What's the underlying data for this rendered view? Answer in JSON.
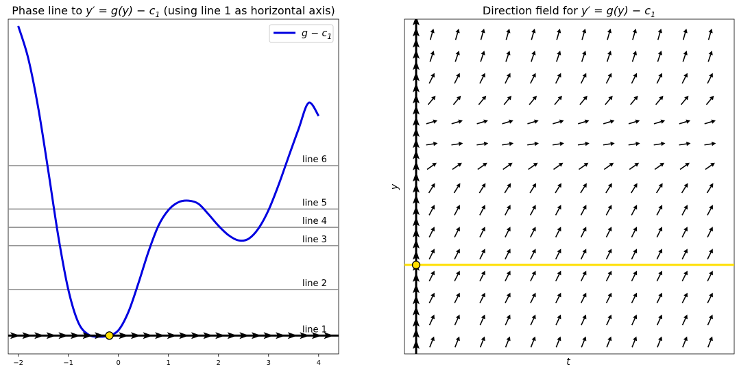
{
  "chart_data": [
    {
      "type": "line",
      "title_prefix": "Phase line to ",
      "title_math_1": "y′ = g(y) − c",
      "title_sub": "1",
      "title_suffix": " (using line 1 as horizontal axis)",
      "xlim": [
        -2.2,
        4.4
      ],
      "ylim": [
        -0.35,
        6.05
      ],
      "x_ticks": [
        -2,
        -1,
        0,
        1,
        2,
        3,
        4
      ],
      "x_tick_labels": [
        "−2",
        "−1",
        "0",
        "1",
        "2",
        "3",
        "4"
      ],
      "series": [
        {
          "name": "g − c1",
          "legend_main": "g − c",
          "legend_sub": "1",
          "color": "#0000e0",
          "x": [
            -2.0,
            -1.8,
            -1.6,
            -1.4,
            -1.2,
            -1.0,
            -0.8,
            -0.6,
            -0.4,
            -0.2,
            0.0,
            0.2,
            0.4,
            0.6,
            0.8,
            1.0,
            1.2,
            1.4,
            1.6,
            1.8,
            2.0,
            2.2,
            2.4,
            2.6,
            2.8,
            3.0,
            3.2,
            3.4,
            3.6,
            3.8,
            4.0
          ],
          "y": [
            5.92,
            5.3,
            4.35,
            3.15,
            1.9,
            0.88,
            0.25,
            0.02,
            -0.02,
            0.0,
            0.1,
            0.45,
            1.0,
            1.6,
            2.1,
            2.4,
            2.55,
            2.58,
            2.52,
            2.32,
            2.1,
            1.92,
            1.82,
            1.85,
            2.05,
            2.4,
            2.88,
            3.42,
            3.95,
            4.45,
            4.2
          ]
        }
      ],
      "hlines": [
        {
          "label": "line 1",
          "y": 0.0
        },
        {
          "label": "line 2",
          "y": 0.88
        },
        {
          "label": "line 3",
          "y": 1.72
        },
        {
          "label": "line 4",
          "y": 2.07
        },
        {
          "label": "line 5",
          "y": 2.42
        },
        {
          "label": "line 6",
          "y": 3.25
        }
      ],
      "equilibrium": {
        "x": -0.18,
        "y": 0.0,
        "color": "#ffdf00"
      },
      "flow_arrow_direction": "right",
      "legend_position": "top-right"
    },
    {
      "type": "quiver",
      "title_prefix": "Direction field for ",
      "title_math_1": "y′ = g(y) − c",
      "title_sub": "1",
      "xlabel": "t",
      "ylabel": "y",
      "equilibrium_y_row": 10.5,
      "equilibrium_color": "#ffdf00",
      "columns": 12,
      "rows": [
        {
          "row": 0,
          "slope": 3.5
        },
        {
          "row": 1,
          "slope": 3.0
        },
        {
          "row": 2,
          "slope": 2.0
        },
        {
          "row": 3,
          "slope": 1.2
        },
        {
          "row": 4,
          "slope": 0.3
        },
        {
          "row": 5,
          "slope": 0.15
        },
        {
          "row": 6,
          "slope": 0.7
        },
        {
          "row": 7,
          "slope": 1.6
        },
        {
          "row": 8,
          "slope": 1.9
        },
        {
          "row": 9,
          "slope": 2.0
        },
        {
          "row": 10,
          "slope": 2.0
        },
        {
          "row": 11,
          "slope": 2.0
        },
        {
          "row": 12,
          "slope": 2.0
        },
        {
          "row": 13,
          "slope": 2.2
        },
        {
          "row": 14,
          "slope": 2.5
        }
      ]
    }
  ]
}
